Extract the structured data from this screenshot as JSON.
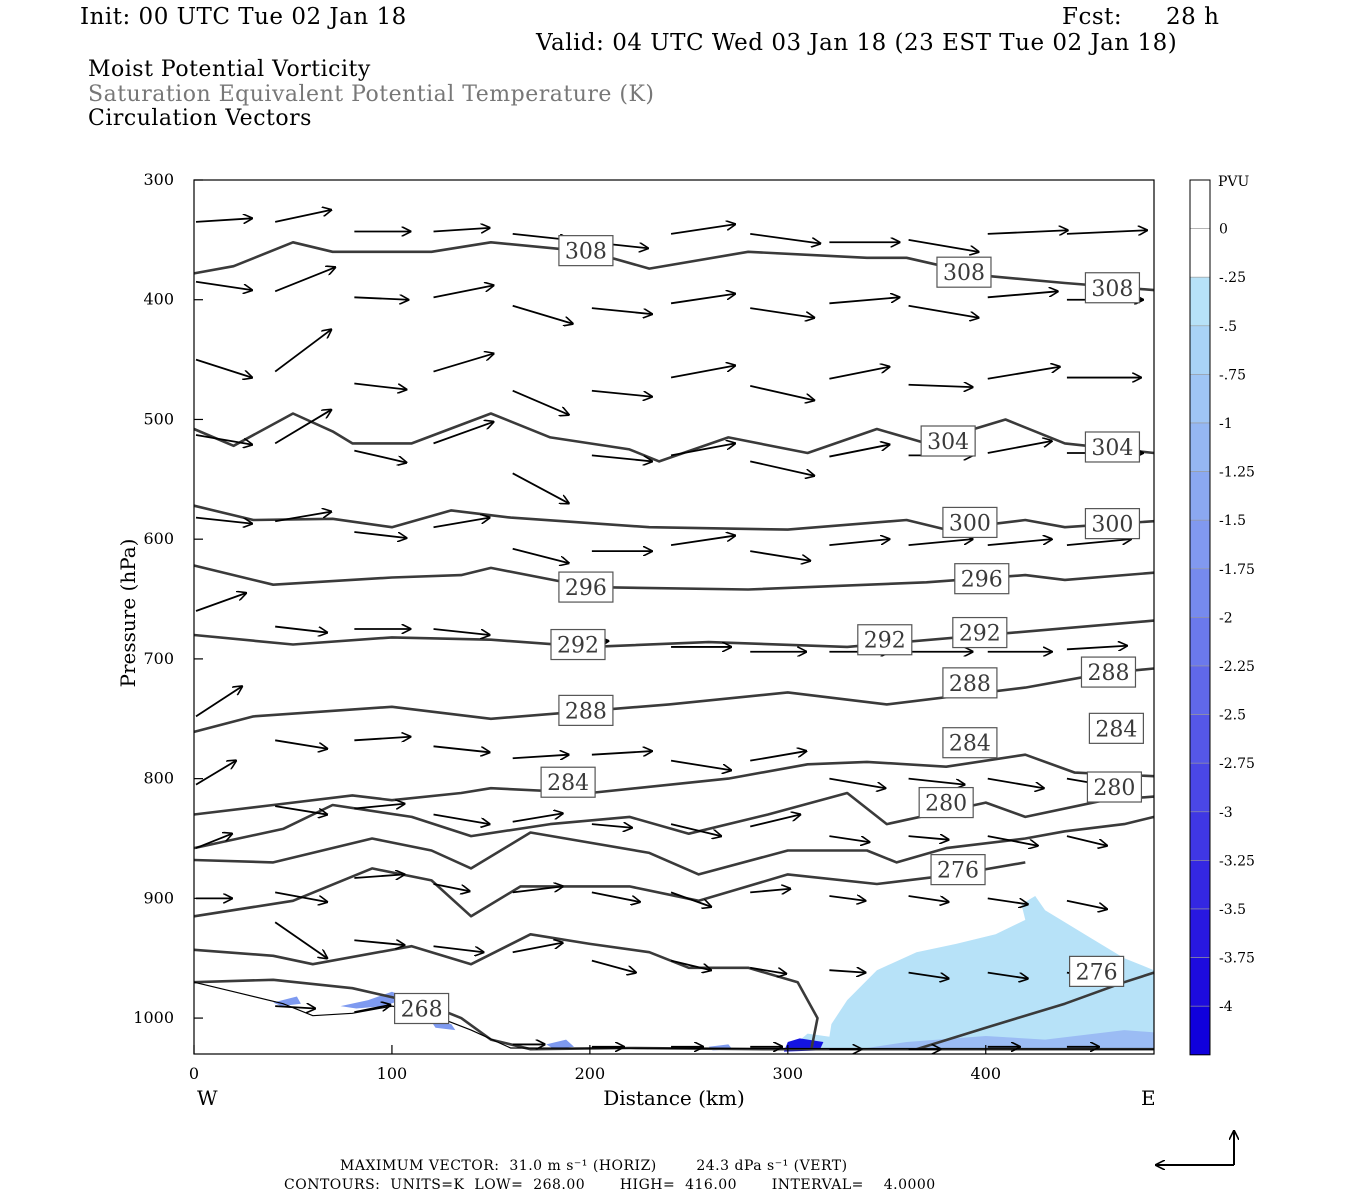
{
  "header": {
    "init": "Init: 00 UTC Tue 02 Jan 18",
    "fcst_label": "Fcst:",
    "fcst_value": "28 h",
    "valid": "Valid: 04 UTC Wed 03 Jan 18 (23 EST Tue 02 Jan 18)"
  },
  "fields": {
    "field1": "Moist Potential Vorticity",
    "field2": "Saturation Equivalent Potential Temperature (K)",
    "field3": "Circulation Vectors"
  },
  "footer": {
    "max_vector": "MAXIMUM VECTOR:  31.0 m s⁻¹ (HORIZ)        24.3 dPa s⁻¹ (VERT)",
    "contours": "CONTOURS:  UNITS=K  LOW=  268.00       HIGH=  416.00       INTERVAL=    4.0000"
  },
  "colors": {
    "contour": "#3a3a3a",
    "vector": "#000000",
    "pv_light": "#b7e2f8",
    "pv_mid": "#7e9af0",
    "pv_dark": "#1414e0"
  },
  "chart_data": {
    "type": "cross-section",
    "xlabel": "Distance (km)",
    "ylabel": "Pressure (hPa)",
    "xlim": [
      0,
      485
    ],
    "ylim": [
      1030,
      300
    ],
    "x_ticks": [
      "0",
      "100",
      "200",
      "300",
      "400"
    ],
    "y_ticks": [
      "300",
      "400",
      "500",
      "600",
      "700",
      "800",
      "900",
      "1000"
    ],
    "x_end_labels": {
      "left": "W",
      "right": "E"
    },
    "contour_labels": [
      {
        "text": "308",
        "x": 198,
        "p": 359
      },
      {
        "text": "308",
        "x": 389,
        "p": 377
      },
      {
        "text": "308",
        "x": 464,
        "p": 390
      },
      {
        "text": "304",
        "x": 381,
        "p": 518
      },
      {
        "text": "304",
        "x": 464,
        "p": 523
      },
      {
        "text": "300",
        "x": 392,
        "p": 586
      },
      {
        "text": "300",
        "x": 464,
        "p": 587
      },
      {
        "text": "296",
        "x": 198,
        "p": 640
      },
      {
        "text": "296",
        "x": 398,
        "p": 633
      },
      {
        "text": "292",
        "x": 194,
        "p": 688
      },
      {
        "text": "292",
        "x": 349,
        "p": 684
      },
      {
        "text": "292",
        "x": 397,
        "p": 678
      },
      {
        "text": "288",
        "x": 198,
        "p": 743
      },
      {
        "text": "288",
        "x": 392,
        "p": 720
      },
      {
        "text": "288",
        "x": 462,
        "p": 711
      },
      {
        "text": "284",
        "x": 189,
        "p": 803
      },
      {
        "text": "284",
        "x": 392,
        "p": 770
      },
      {
        "text": "284",
        "x": 466,
        "p": 758
      },
      {
        "text": "280",
        "x": 380,
        "p": 820
      },
      {
        "text": "280",
        "x": 465,
        "p": 807
      },
      {
        "text": "276",
        "x": 386,
        "p": 876
      },
      {
        "text": "276",
        "x": 456,
        "p": 961
      },
      {
        "text": "268",
        "x": 115,
        "p": 992
      }
    ],
    "colorbar": {
      "units": "PVU",
      "labels": [
        "0",
        "-.25",
        "-.5",
        "-.75",
        "-1",
        "-1.25",
        "-1.5",
        "-1.75",
        "-2",
        "-2.25",
        "-2.5",
        "-2.75",
        "-3",
        "-3.25",
        "-3.5",
        "-3.75",
        "-4"
      ],
      "colors": [
        "#ffffff",
        "#ffffff",
        "#b7e2f8",
        "#a9d3f6",
        "#9fc5f5",
        "#95b7f3",
        "#8ba8f1",
        "#8199f0",
        "#768aee",
        "#6b79ec",
        "#6068ea",
        "#5557e8",
        "#4a47e6",
        "#3f37e4",
        "#3427e2",
        "#2818e0",
        "#1d0bde",
        "#1000dc"
      ]
    }
  }
}
